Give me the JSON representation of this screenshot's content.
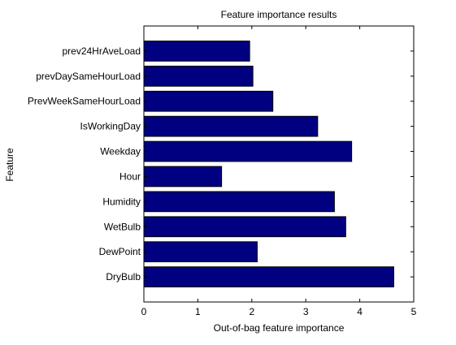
{
  "chart_data": {
    "type": "bar",
    "orientation": "horizontal",
    "title": "Feature importance results",
    "xlabel": "Out-of-bag feature importance",
    "ylabel": "Feature",
    "xlim": [
      0,
      5
    ],
    "xticks": [
      "0",
      "1",
      "2",
      "3",
      "4",
      "5"
    ],
    "categories": [
      "DryBulb",
      "DewPoint",
      "WetBulb",
      "Humidity",
      "Hour",
      "Weekday",
      "IsWorkingDay",
      "PrevWeekSameHourLoad",
      "prevDaySameHourLoad",
      "prev24HrAveLoad"
    ],
    "values": [
      4.63,
      2.1,
      3.74,
      3.53,
      1.44,
      3.85,
      3.22,
      2.39,
      2.02,
      1.96
    ],
    "bar_color": "#000080",
    "grid": false,
    "legend": "none"
  }
}
